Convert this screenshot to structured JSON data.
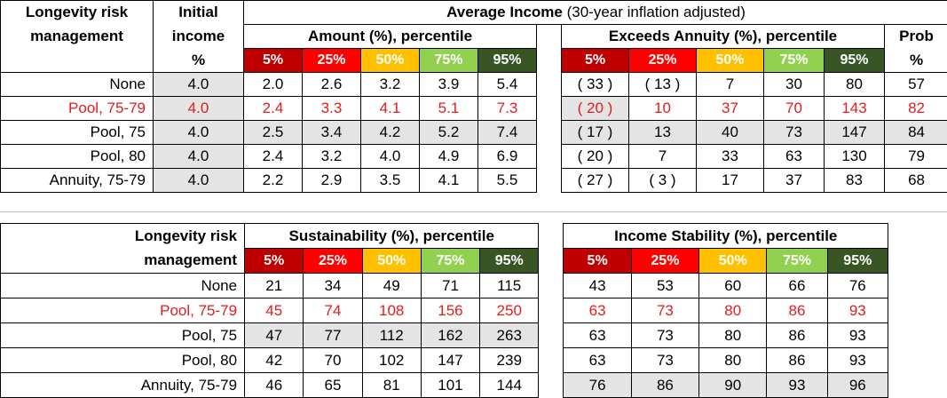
{
  "table1": {
    "hdr_label_line1": "Longevity risk",
    "hdr_label_line2": "management",
    "hdr_init_line1": "Initial",
    "hdr_init_line2": "income",
    "hdr_init_line3": "%",
    "avg_income_title": "Average Income",
    "avg_income_sub": " (30-year inflation adjusted)",
    "amount_title": "Amount (%), percentile",
    "exceeds_title": "Exceeds Annuity (%), percentile",
    "prob_line1": "Prob",
    "prob_line2": "%",
    "percentiles": [
      "5%",
      "25%",
      "50%",
      "75%",
      "95%"
    ],
    "rows": [
      {
        "label": "None",
        "init": "4.0",
        "amount": [
          "2.0",
          "2.6",
          "3.2",
          "3.9",
          "5.4"
        ],
        "exceeds": [
          "( 33 )",
          "( 13 )",
          "7",
          "30",
          "80"
        ],
        "prob": "57",
        "highlight": false
      },
      {
        "label": "Pool, 75-79",
        "init": "4.0",
        "amount": [
          "2.4",
          "3.3",
          "4.1",
          "5.1",
          "7.3"
        ],
        "exceeds": [
          "( 20 )",
          "10",
          "37",
          "70",
          "143"
        ],
        "prob": "82",
        "highlight": true
      },
      {
        "label": "Pool, 75",
        "init": "4.0",
        "amount": [
          "2.5",
          "3.4",
          "4.2",
          "5.2",
          "7.4"
        ],
        "exceeds": [
          "( 17 )",
          "13",
          "40",
          "73",
          "147"
        ],
        "prob": "84",
        "highlight": false
      },
      {
        "label": "Pool, 80",
        "init": "4.0",
        "amount": [
          "2.4",
          "3.2",
          "4.0",
          "4.9",
          "6.9"
        ],
        "exceeds": [
          "( 20 )",
          "7",
          "33",
          "63",
          "130"
        ],
        "prob": "79",
        "highlight": false
      },
      {
        "label": "Annuity, 75-79",
        "init": "4.0",
        "amount": [
          "2.2",
          "2.9",
          "3.5",
          "4.1",
          "5.5"
        ],
        "exceeds": [
          "( 27 )",
          "( 3 )",
          "17",
          "37",
          "83"
        ],
        "prob": "68",
        "highlight": false
      }
    ]
  },
  "table2": {
    "hdr_label_line1": "Longevity risk",
    "hdr_label_line2": "management",
    "sustain_title": "Sustainability (%), percentile",
    "stability_title": "Income Stability (%), percentile",
    "percentiles": [
      "5%",
      "25%",
      "50%",
      "75%",
      "95%"
    ],
    "rows": [
      {
        "label": "None",
        "sustain": [
          "21",
          "34",
          "49",
          "71",
          "115"
        ],
        "stability": [
          "43",
          "53",
          "60",
          "66",
          "76"
        ],
        "highlight": false
      },
      {
        "label": "Pool, 75-79",
        "sustain": [
          "45",
          "74",
          "108",
          "156",
          "250"
        ],
        "stability": [
          "63",
          "73",
          "80",
          "86",
          "93"
        ],
        "highlight": true
      },
      {
        "label": "Pool, 75",
        "sustain": [
          "47",
          "77",
          "112",
          "162",
          "263"
        ],
        "stability": [
          "63",
          "73",
          "80",
          "86",
          "93"
        ],
        "highlight": false
      },
      {
        "label": "Pool, 80",
        "sustain": [
          "42",
          "70",
          "102",
          "147",
          "239"
        ],
        "stability": [
          "63",
          "73",
          "80",
          "86",
          "93"
        ],
        "highlight": false
      },
      {
        "label": "Annuity, 75-79",
        "sustain": [
          "46",
          "65",
          "81",
          "101",
          "144"
        ],
        "stability": [
          "76",
          "86",
          "90",
          "93",
          "96"
        ],
        "highlight": false
      }
    ]
  },
  "colors": {
    "p5": "#c00000",
    "p25": "#ff0000",
    "p50": "#ffc000",
    "p75": "#92d050",
    "p95": "#375623",
    "highlight_text": "#e51b1b",
    "shade": "#e4e4e4"
  }
}
